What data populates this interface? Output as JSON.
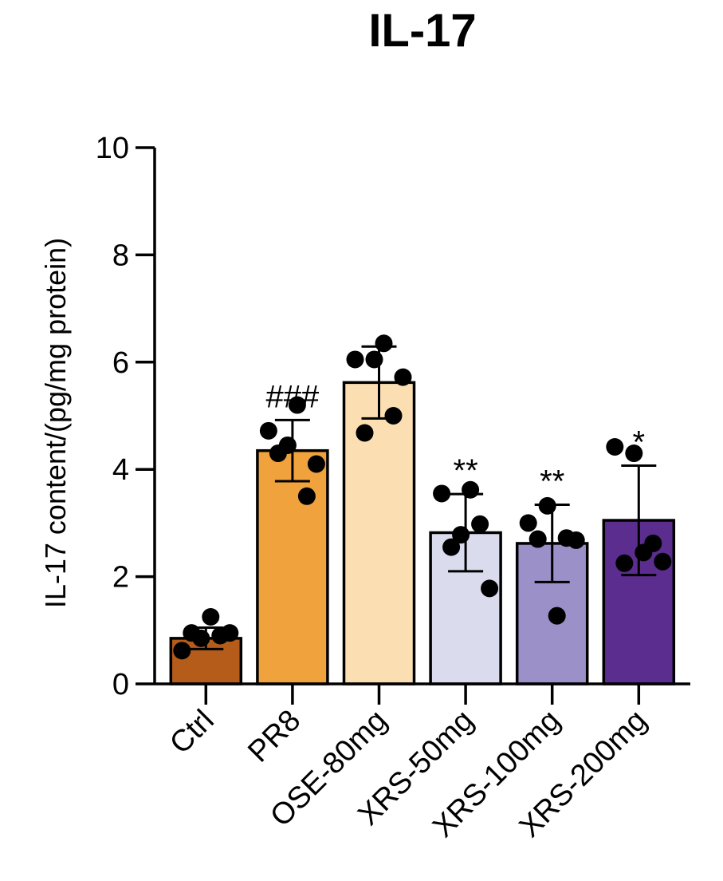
{
  "chart_data": {
    "type": "bar",
    "title": "IL-17",
    "ylabel": "IL-17 content/(pg/mg protein)",
    "xlabel": "",
    "ylim": [
      0,
      10
    ],
    "yticks": [
      0,
      2,
      4,
      6,
      8,
      10
    ],
    "categories": [
      "Ctrl",
      "PR8",
      "OSE-80mg",
      "XRS-50mg",
      "XRS-100mg",
      "XRS-200mg"
    ],
    "values": [
      0.85,
      4.35,
      5.62,
      2.82,
      2.62,
      3.05
    ],
    "error": [
      0.2,
      0.57,
      0.67,
      0.72,
      0.72,
      1.02
    ],
    "significance": [
      "",
      "###",
      "",
      "**",
      "**",
      "*"
    ],
    "colors": [
      "#b65c1a",
      "#f0a23c",
      "#fbdfb3",
      "#dadcee",
      "#9b90c7",
      "#5b2d8e"
    ],
    "points": [
      [
        0.62,
        0.95,
        0.85,
        1.25,
        0.9,
        0.95
      ],
      [
        4.72,
        4.3,
        4.45,
        5.2,
        3.5,
        4.1
      ],
      [
        6.05,
        4.68,
        6.05,
        6.35,
        5.0,
        5.72
      ],
      [
        3.55,
        2.55,
        2.78,
        3.62,
        2.98,
        1.78
      ],
      [
        3.0,
        2.7,
        3.32,
        1.27,
        2.72,
        2.68
      ],
      [
        4.42,
        2.25,
        4.3,
        2.45,
        2.62,
        2.28
      ]
    ],
    "grid": false,
    "legend": "none"
  }
}
